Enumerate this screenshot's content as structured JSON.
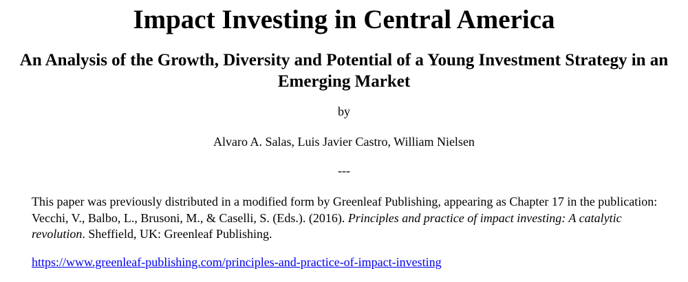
{
  "title": "Impact Investing in Central America",
  "subtitle": "An Analysis of the Growth, Diversity and Potential of a Young Investment Strategy in an Emerging Market",
  "by": "by",
  "authors": "Alvaro A. Salas, Luis Javier Castro, William Nielsen",
  "separator": "---",
  "note": {
    "part1": "This paper was previously distributed in a modified form by Greenleaf Publishing, appearing as Chapter 17 in the publication: Vecchi, V., Balbo, L., Brusoni, M., & Caselli, S. (Eds.). (2016). ",
    "book": "Principles and practice of impact investing: A catalytic revolution",
    "part2": ". Sheffield, UK: Greenleaf Publishing."
  },
  "link": "https://www.greenleaf-publishing.com/principles-and-practice-of-impact-investing"
}
